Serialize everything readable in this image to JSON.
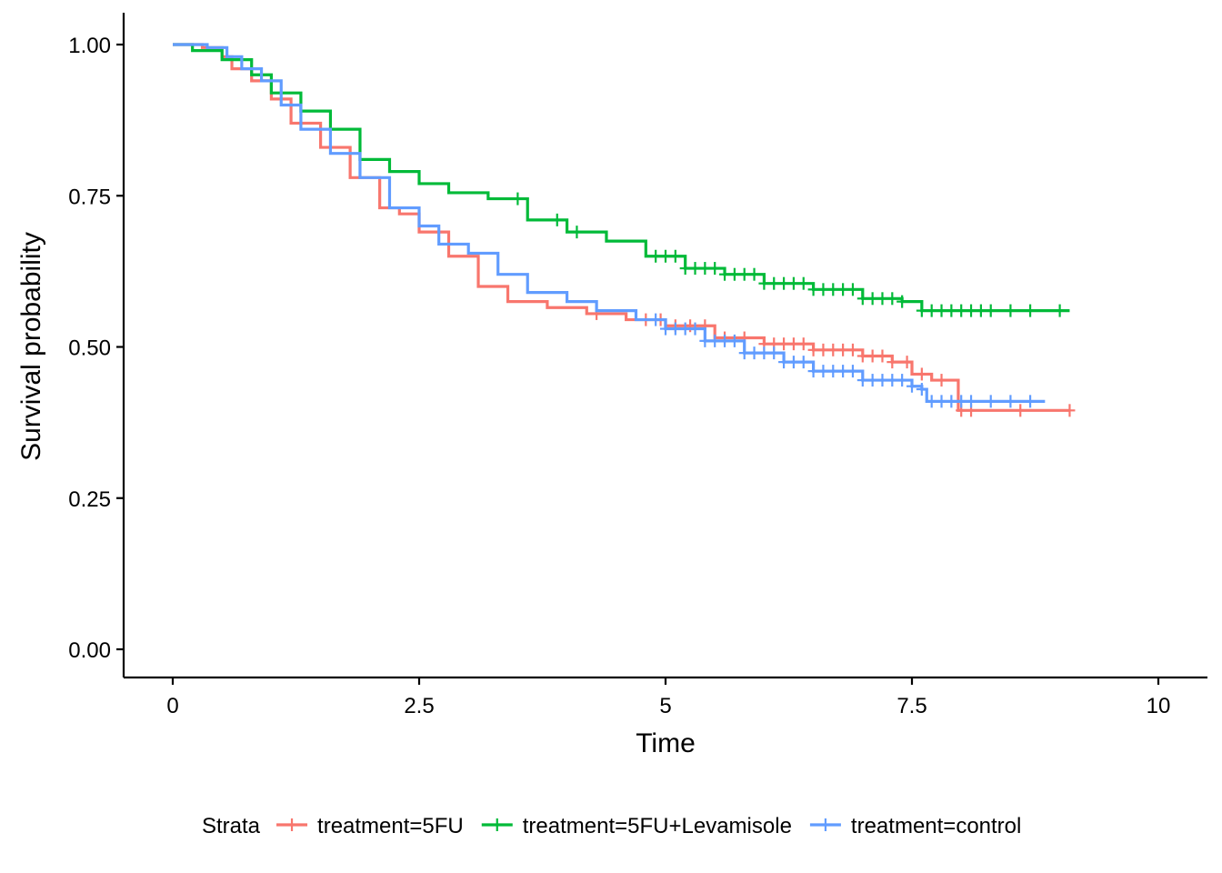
{
  "chart_data": {
    "type": "line",
    "subtype": "kaplan-meier step curves with censoring marks",
    "xlabel": "Time",
    "ylabel": "Survival probability",
    "xlim": [
      0,
      10
    ],
    "ylim": [
      0,
      1
    ],
    "x_ticks": [
      {
        "value": 0,
        "label": "0"
      },
      {
        "value": 2.5,
        "label": "2.5"
      },
      {
        "value": 5,
        "label": "5"
      },
      {
        "value": 7.5,
        "label": "7.5"
      },
      {
        "value": 10,
        "label": "10"
      }
    ],
    "y_ticks": [
      {
        "value": 0,
        "label": "0.00"
      },
      {
        "value": 0.25,
        "label": "0.25"
      },
      {
        "value": 0.5,
        "label": "0.50"
      },
      {
        "value": 0.75,
        "label": "0.75"
      },
      {
        "value": 1,
        "label": "1.00"
      }
    ],
    "grid": false,
    "legend": {
      "position": "bottom",
      "title": "Strata"
    },
    "series": [
      {
        "name": "treatment=5FU",
        "color": "#F8766D",
        "points": [
          [
            0,
            1.0
          ],
          [
            0.3,
            0.995
          ],
          [
            0.5,
            0.98
          ],
          [
            0.6,
            0.96
          ],
          [
            0.8,
            0.94
          ],
          [
            1.0,
            0.91
          ],
          [
            1.2,
            0.87
          ],
          [
            1.5,
            0.83
          ],
          [
            1.8,
            0.78
          ],
          [
            2.1,
            0.73
          ],
          [
            2.3,
            0.72
          ],
          [
            2.5,
            0.69
          ],
          [
            2.8,
            0.65
          ],
          [
            3.1,
            0.6
          ],
          [
            3.4,
            0.575
          ],
          [
            3.8,
            0.565
          ],
          [
            4.2,
            0.555
          ],
          [
            4.6,
            0.545
          ],
          [
            5.0,
            0.535
          ],
          [
            5.5,
            0.515
          ],
          [
            6.0,
            0.505
          ],
          [
            6.5,
            0.495
          ],
          [
            7.0,
            0.485
          ],
          [
            7.3,
            0.475
          ],
          [
            7.5,
            0.455
          ],
          [
            7.7,
            0.445
          ],
          [
            7.97,
            0.445
          ],
          [
            7.97,
            0.395
          ],
          [
            9.1,
            0.395
          ]
        ],
        "censor_times": [
          4.3,
          4.8,
          4.95,
          5.1,
          5.25,
          5.4,
          5.6,
          5.8,
          6.0,
          6.1,
          6.2,
          6.3,
          6.4,
          6.5,
          6.6,
          6.7,
          6.8,
          6.9,
          7.0,
          7.1,
          7.2,
          7.3,
          7.45,
          7.6,
          7.8,
          8.0,
          8.1,
          8.6,
          9.1
        ]
      },
      {
        "name": "treatment=5FU+Levamisole",
        "color": "#00BA38",
        "points": [
          [
            0,
            1.0
          ],
          [
            0.2,
            0.99
          ],
          [
            0.5,
            0.975
          ],
          [
            0.8,
            0.95
          ],
          [
            1.0,
            0.92
          ],
          [
            1.3,
            0.89
          ],
          [
            1.6,
            0.86
          ],
          [
            1.9,
            0.81
          ],
          [
            2.2,
            0.79
          ],
          [
            2.5,
            0.77
          ],
          [
            2.8,
            0.755
          ],
          [
            3.2,
            0.745
          ],
          [
            3.6,
            0.71
          ],
          [
            4.0,
            0.69
          ],
          [
            4.4,
            0.675
          ],
          [
            4.8,
            0.65
          ],
          [
            5.2,
            0.63
          ],
          [
            5.6,
            0.62
          ],
          [
            6.0,
            0.605
          ],
          [
            6.5,
            0.595
          ],
          [
            7.0,
            0.58
          ],
          [
            7.4,
            0.575
          ],
          [
            7.6,
            0.56
          ],
          [
            9.1,
            0.56
          ]
        ],
        "censor_times": [
          3.5,
          3.9,
          4.1,
          4.9,
          5.0,
          5.1,
          5.2,
          5.3,
          5.4,
          5.5,
          5.6,
          5.7,
          5.8,
          5.9,
          6.0,
          6.1,
          6.2,
          6.3,
          6.4,
          6.5,
          6.6,
          6.7,
          6.8,
          6.9,
          7.0,
          7.1,
          7.2,
          7.3,
          7.4,
          7.6,
          7.7,
          7.8,
          7.9,
          8.0,
          8.1,
          8.2,
          8.3,
          8.5,
          8.7,
          9.0
        ]
      },
      {
        "name": "treatment=control",
        "color": "#619CFF",
        "points": [
          [
            0,
            1.0
          ],
          [
            0.35,
            0.995
          ],
          [
            0.55,
            0.98
          ],
          [
            0.7,
            0.96
          ],
          [
            0.9,
            0.94
          ],
          [
            1.1,
            0.9
          ],
          [
            1.3,
            0.86
          ],
          [
            1.6,
            0.82
          ],
          [
            1.9,
            0.78
          ],
          [
            2.2,
            0.73
          ],
          [
            2.5,
            0.7
          ],
          [
            2.7,
            0.67
          ],
          [
            3.0,
            0.655
          ],
          [
            3.3,
            0.62
          ],
          [
            3.6,
            0.59
          ],
          [
            4.0,
            0.575
          ],
          [
            4.3,
            0.56
          ],
          [
            4.7,
            0.545
          ],
          [
            5.0,
            0.53
          ],
          [
            5.4,
            0.51
          ],
          [
            5.8,
            0.49
          ],
          [
            6.2,
            0.475
          ],
          [
            6.5,
            0.46
          ],
          [
            7.0,
            0.445
          ],
          [
            7.5,
            0.435
          ],
          [
            7.6,
            0.43
          ],
          [
            7.65,
            0.41
          ],
          [
            8.85,
            0.41
          ]
        ],
        "censor_times": [
          4.9,
          5.0,
          5.1,
          5.2,
          5.3,
          5.4,
          5.5,
          5.6,
          5.7,
          5.8,
          5.9,
          6.0,
          6.1,
          6.2,
          6.3,
          6.4,
          6.5,
          6.6,
          6.7,
          6.8,
          6.9,
          7.0,
          7.1,
          7.2,
          7.3,
          7.4,
          7.5,
          7.6,
          7.7,
          7.8,
          7.9,
          8.0,
          8.1,
          8.3,
          8.5,
          8.7
        ]
      }
    ]
  }
}
